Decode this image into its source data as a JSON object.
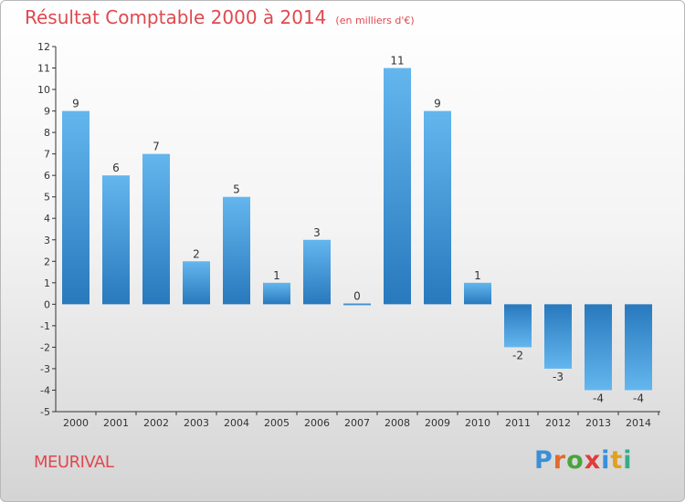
{
  "title": "Résultat Comptable 2000 à 2014",
  "unit_note": "(en milliers d'€)",
  "commune": "MEURIVAL",
  "logo": {
    "text": "Proxiti",
    "letters": [
      "P",
      "r",
      "o",
      "x",
      "i",
      "t",
      "i"
    ],
    "colors": [
      "#3a8fd8",
      "#e36a2a",
      "#4aa43c",
      "#e33a3a",
      "#3a8fd8",
      "#e0a020",
      "#3aaa88"
    ]
  },
  "colors": {
    "title": "#e0484f",
    "bar_light": "#62b4ec",
    "bar_dark": "#2a7fc2"
  },
  "chart_data": {
    "type": "bar",
    "categories": [
      "2000",
      "2001",
      "2002",
      "2003",
      "2004",
      "2005",
      "2006",
      "2007",
      "2008",
      "2009",
      "2010",
      "2011",
      "2012",
      "2013",
      "2014"
    ],
    "values": [
      9,
      6,
      7,
      2,
      5,
      1,
      3,
      0,
      11,
      9,
      1,
      -2,
      -3,
      -4,
      -4
    ],
    "value_labels": [
      "9",
      "6",
      "7",
      "2",
      "5",
      "1",
      "3",
      "0",
      "11",
      "9",
      "1",
      "-2",
      "-3",
      "-4",
      "-4"
    ],
    "ylim": [
      -5,
      12
    ],
    "yticks": [
      12,
      11,
      10,
      9,
      8,
      7,
      6,
      5,
      4,
      3,
      2,
      1,
      0,
      -1,
      -2,
      -3,
      -4,
      -5
    ],
    "ytick_labels": [
      "12",
      "11",
      "10",
      "9",
      "8",
      "7",
      "6",
      "5",
      "4",
      "3",
      "2",
      "1",
      "0",
      "-1",
      "-2",
      "-3",
      "-4",
      "-5"
    ],
    "grid": false
  }
}
